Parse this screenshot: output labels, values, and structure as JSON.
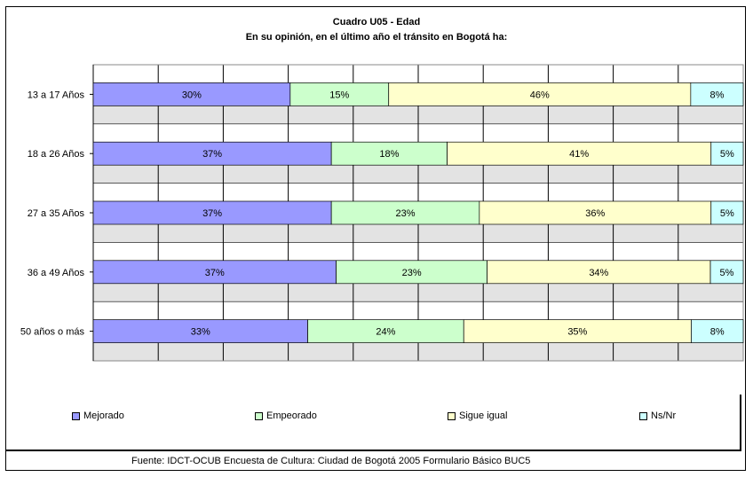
{
  "title": "Cuadro U05 - Edad",
  "subtitle": "En su opinión, en el último año el tránsito en Bogotá ha:",
  "source": "Fuente: IDCT-OCUB Encuesta de Cultura: Ciudad de Bogotá 2005 Formulario Básico BUC5",
  "colors": {
    "Mejorado": "#9999ff",
    "Empeorado": "#ccffcc",
    "Sigue igual": "#ffffcc",
    "Ns/Nr": "#ccffff",
    "band_light": "#ffffff",
    "band_dark": "#e3e3e3"
  },
  "legend": [
    {
      "label": "Mejorado"
    },
    {
      "label": "Empeorado"
    },
    {
      "label": "Sigue igual"
    },
    {
      "label": "Ns/Nr"
    }
  ],
  "chart_data": {
    "type": "bar",
    "orientation": "horizontal",
    "stacked": true,
    "percent_stacked": true,
    "title": "Cuadro U05 - Edad",
    "subtitle": "En su opinión, en el último año el tránsito en Bogotá ha:",
    "categories": [
      "13 a 17 Años",
      "18 a 26 Años",
      "27 a 35 Años",
      "36 a 49 Años",
      "50 años o más"
    ],
    "series": [
      {
        "name": "Mejorado",
        "values": [
          30,
          37,
          37,
          37,
          33
        ]
      },
      {
        "name": "Empeorado",
        "values": [
          15,
          18,
          23,
          23,
          24
        ]
      },
      {
        "name": "Sigue igual",
        "values": [
          46,
          41,
          36,
          34,
          35
        ]
      },
      {
        "name": "Ns/Nr",
        "values": [
          8,
          5,
          5,
          5,
          8
        ]
      }
    ],
    "data_labels": [
      [
        "30%",
        "15%",
        "46%",
        "8%"
      ],
      [
        "37%",
        "18%",
        "41%",
        "5%"
      ],
      [
        "37%",
        "23%",
        "36%",
        "5%"
      ],
      [
        "37%",
        "23%",
        "34%",
        "5%"
      ],
      [
        "33%",
        "24%",
        "35%",
        "8%"
      ]
    ],
    "xlim": [
      0,
      100
    ],
    "grid": true,
    "legend_position": "bottom"
  }
}
